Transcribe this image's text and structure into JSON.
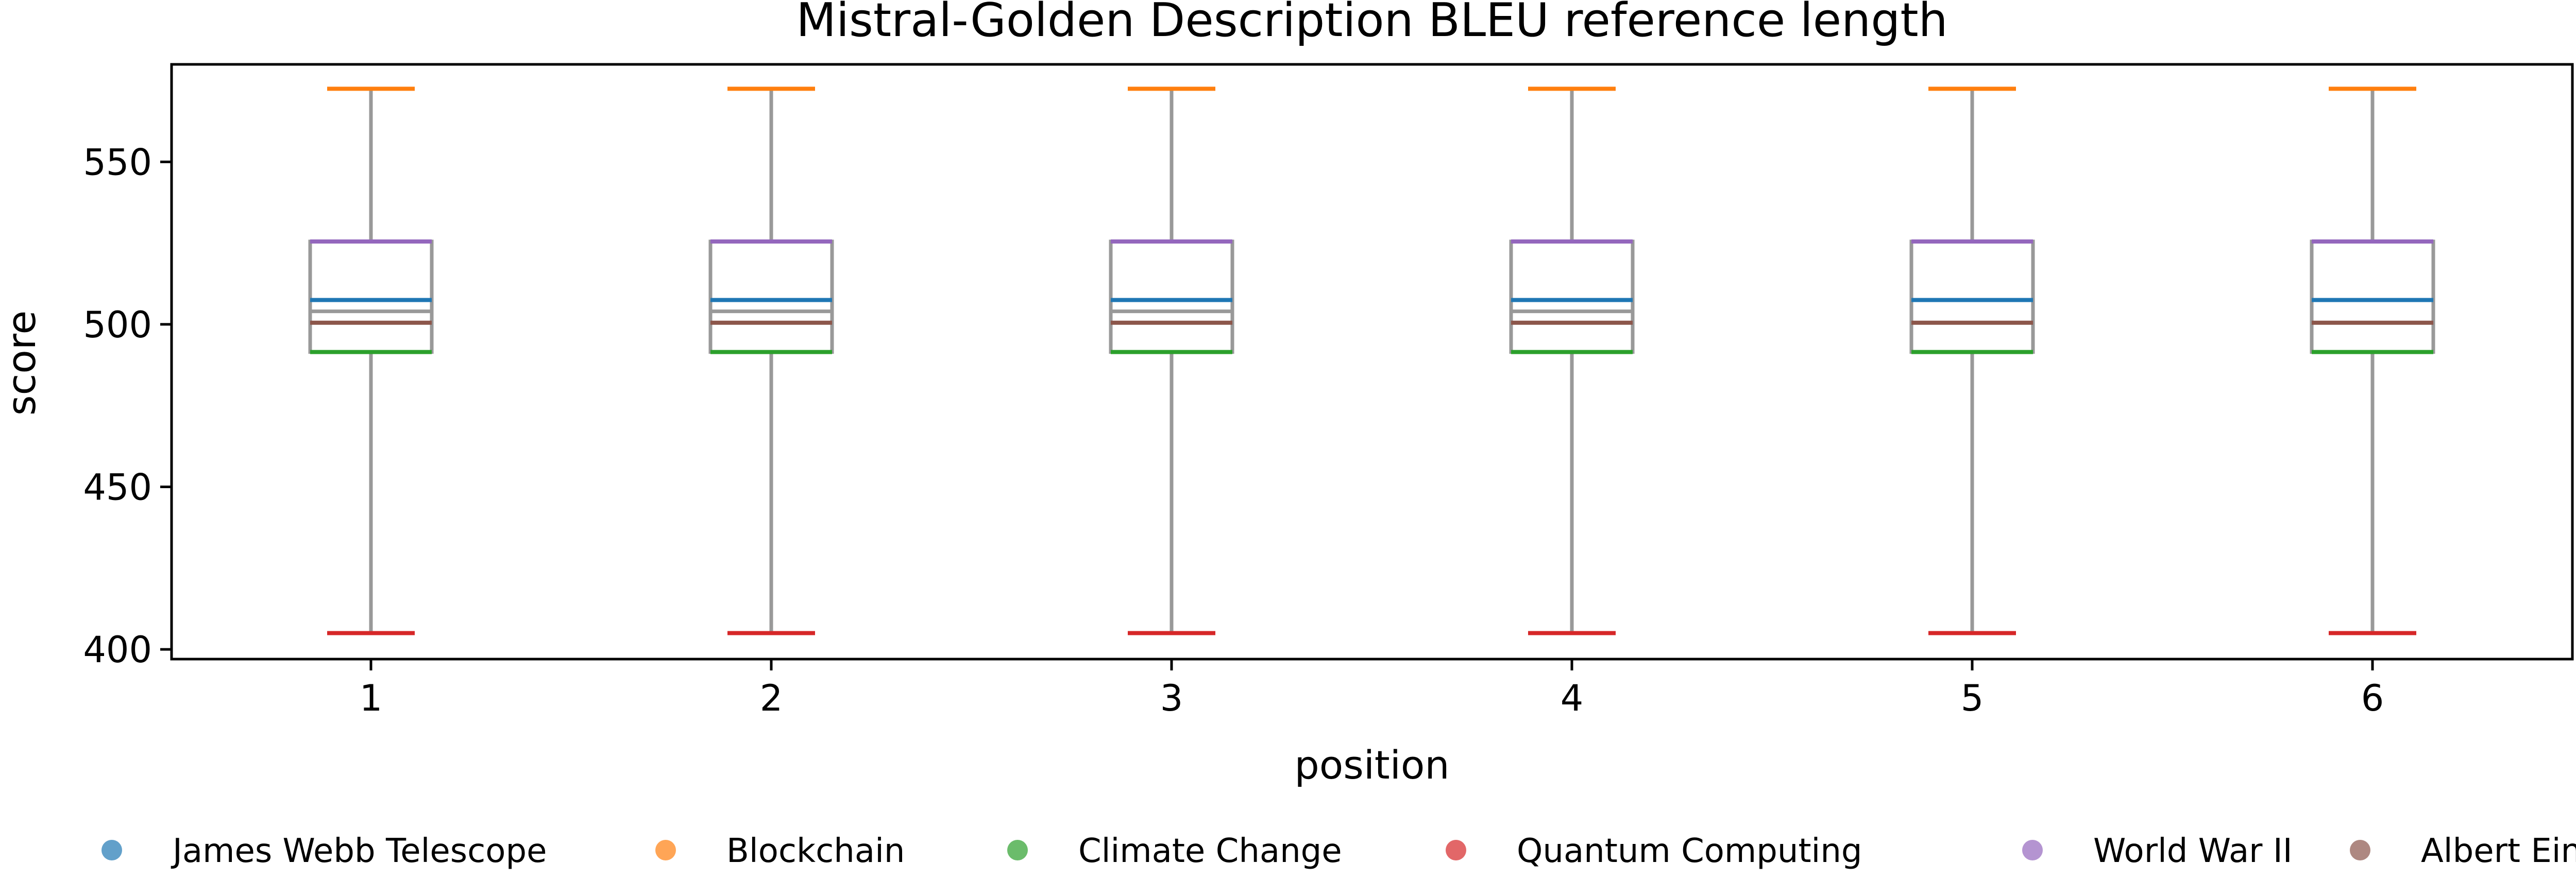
{
  "chart_data": {
    "type": "box",
    "title": "Mistral-Golden Description BLEU reference length",
    "xlabel": "position",
    "ylabel": "score",
    "ylim": [
      397,
      580
    ],
    "yticks": [
      400,
      450,
      500,
      550
    ],
    "categories": [
      "1",
      "2",
      "3",
      "4",
      "5",
      "6"
    ],
    "boxes": [
      {
        "position": "1",
        "whisker_low": 405,
        "q1": 491.5,
        "median": 504,
        "q3": 525.5,
        "whisker_high": 572.5
      },
      {
        "position": "2",
        "whisker_low": 405,
        "q1": 491.5,
        "median": 504,
        "q3": 525.5,
        "whisker_high": 572.5
      },
      {
        "position": "3",
        "whisker_low": 405,
        "q1": 491.5,
        "median": 504,
        "q3": 525.5,
        "whisker_high": 572.5
      },
      {
        "position": "4",
        "whisker_low": 405,
        "q1": 491.5,
        "median": 504,
        "q3": 525.5,
        "whisker_high": 572.5
      },
      {
        "position": "5",
        "whisker_low": 405,
        "q1": 491.5,
        "median": 507.5,
        "q3": 525.5,
        "whisker_high": 572.5
      },
      {
        "position": "6",
        "whisker_low": 405,
        "q1": 491.5,
        "median": 500.5,
        "q3": 525.5,
        "whisker_high": 572.5
      }
    ],
    "series": [
      {
        "name": "James Webb Telescope",
        "color": "#1f77b4",
        "values": [
          507.5,
          507.5,
          507.5,
          507.5,
          507.5,
          507.5
        ]
      },
      {
        "name": "Blockchain",
        "color": "#ff7f0e",
        "values": [
          572.5,
          572.5,
          572.5,
          572.5,
          572.5,
          572.5
        ]
      },
      {
        "name": "Climate Change",
        "color": "#2ca02c",
        "values": [
          491.5,
          491.5,
          491.5,
          491.5,
          491.5,
          491.5
        ]
      },
      {
        "name": "Quantum Computing",
        "color": "#d62728",
        "values": [
          405,
          405,
          405,
          405,
          405,
          405
        ]
      },
      {
        "name": "World War II",
        "color": "#9467bd",
        "values": [
          525.5,
          525.5,
          525.5,
          525.5,
          525.5,
          525.5
        ]
      },
      {
        "name": "Albert Einstein",
        "color": "#8c564b",
        "values": [
          500.5,
          500.5,
          500.5,
          500.5,
          500.5,
          500.5
        ]
      }
    ],
    "box_color": "#999999",
    "legend_position": "bottom"
  }
}
